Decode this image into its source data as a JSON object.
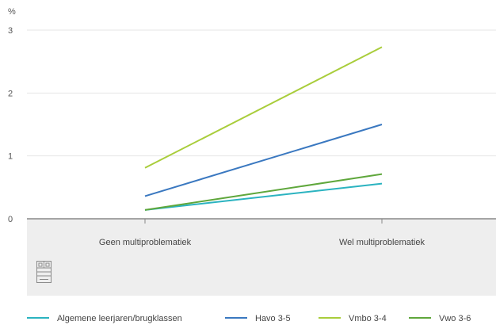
{
  "chart_data": {
    "type": "line",
    "ylabel": "%",
    "ylim": [
      0,
      3
    ],
    "yticks": [
      0,
      1,
      2,
      3
    ],
    "categories": [
      "Geen multiproblematiek",
      "Wel multiproblematiek"
    ],
    "series": [
      {
        "name": "Algemene leerjaren/brugklassen",
        "color": "#2bb3c0",
        "values": [
          0.14,
          0.56
        ]
      },
      {
        "name": "Havo 3-5",
        "color": "#3a78c0",
        "values": [
          0.36,
          1.5
        ]
      },
      {
        "name": "Vmbo 3-4",
        "color": "#a9cd3b",
        "values": [
          0.81,
          2.73
        ]
      },
      {
        "name": "Vwo 3-6",
        "color": "#5fa73c",
        "values": [
          0.14,
          0.71
        ]
      }
    ],
    "grid": true,
    "legend_position": "bottom",
    "colors": {
      "grid": "#e6e6e6",
      "axis": "#888888",
      "band": "#eeeeee"
    }
  },
  "logo": {
    "icon": "building-logo-icon"
  }
}
